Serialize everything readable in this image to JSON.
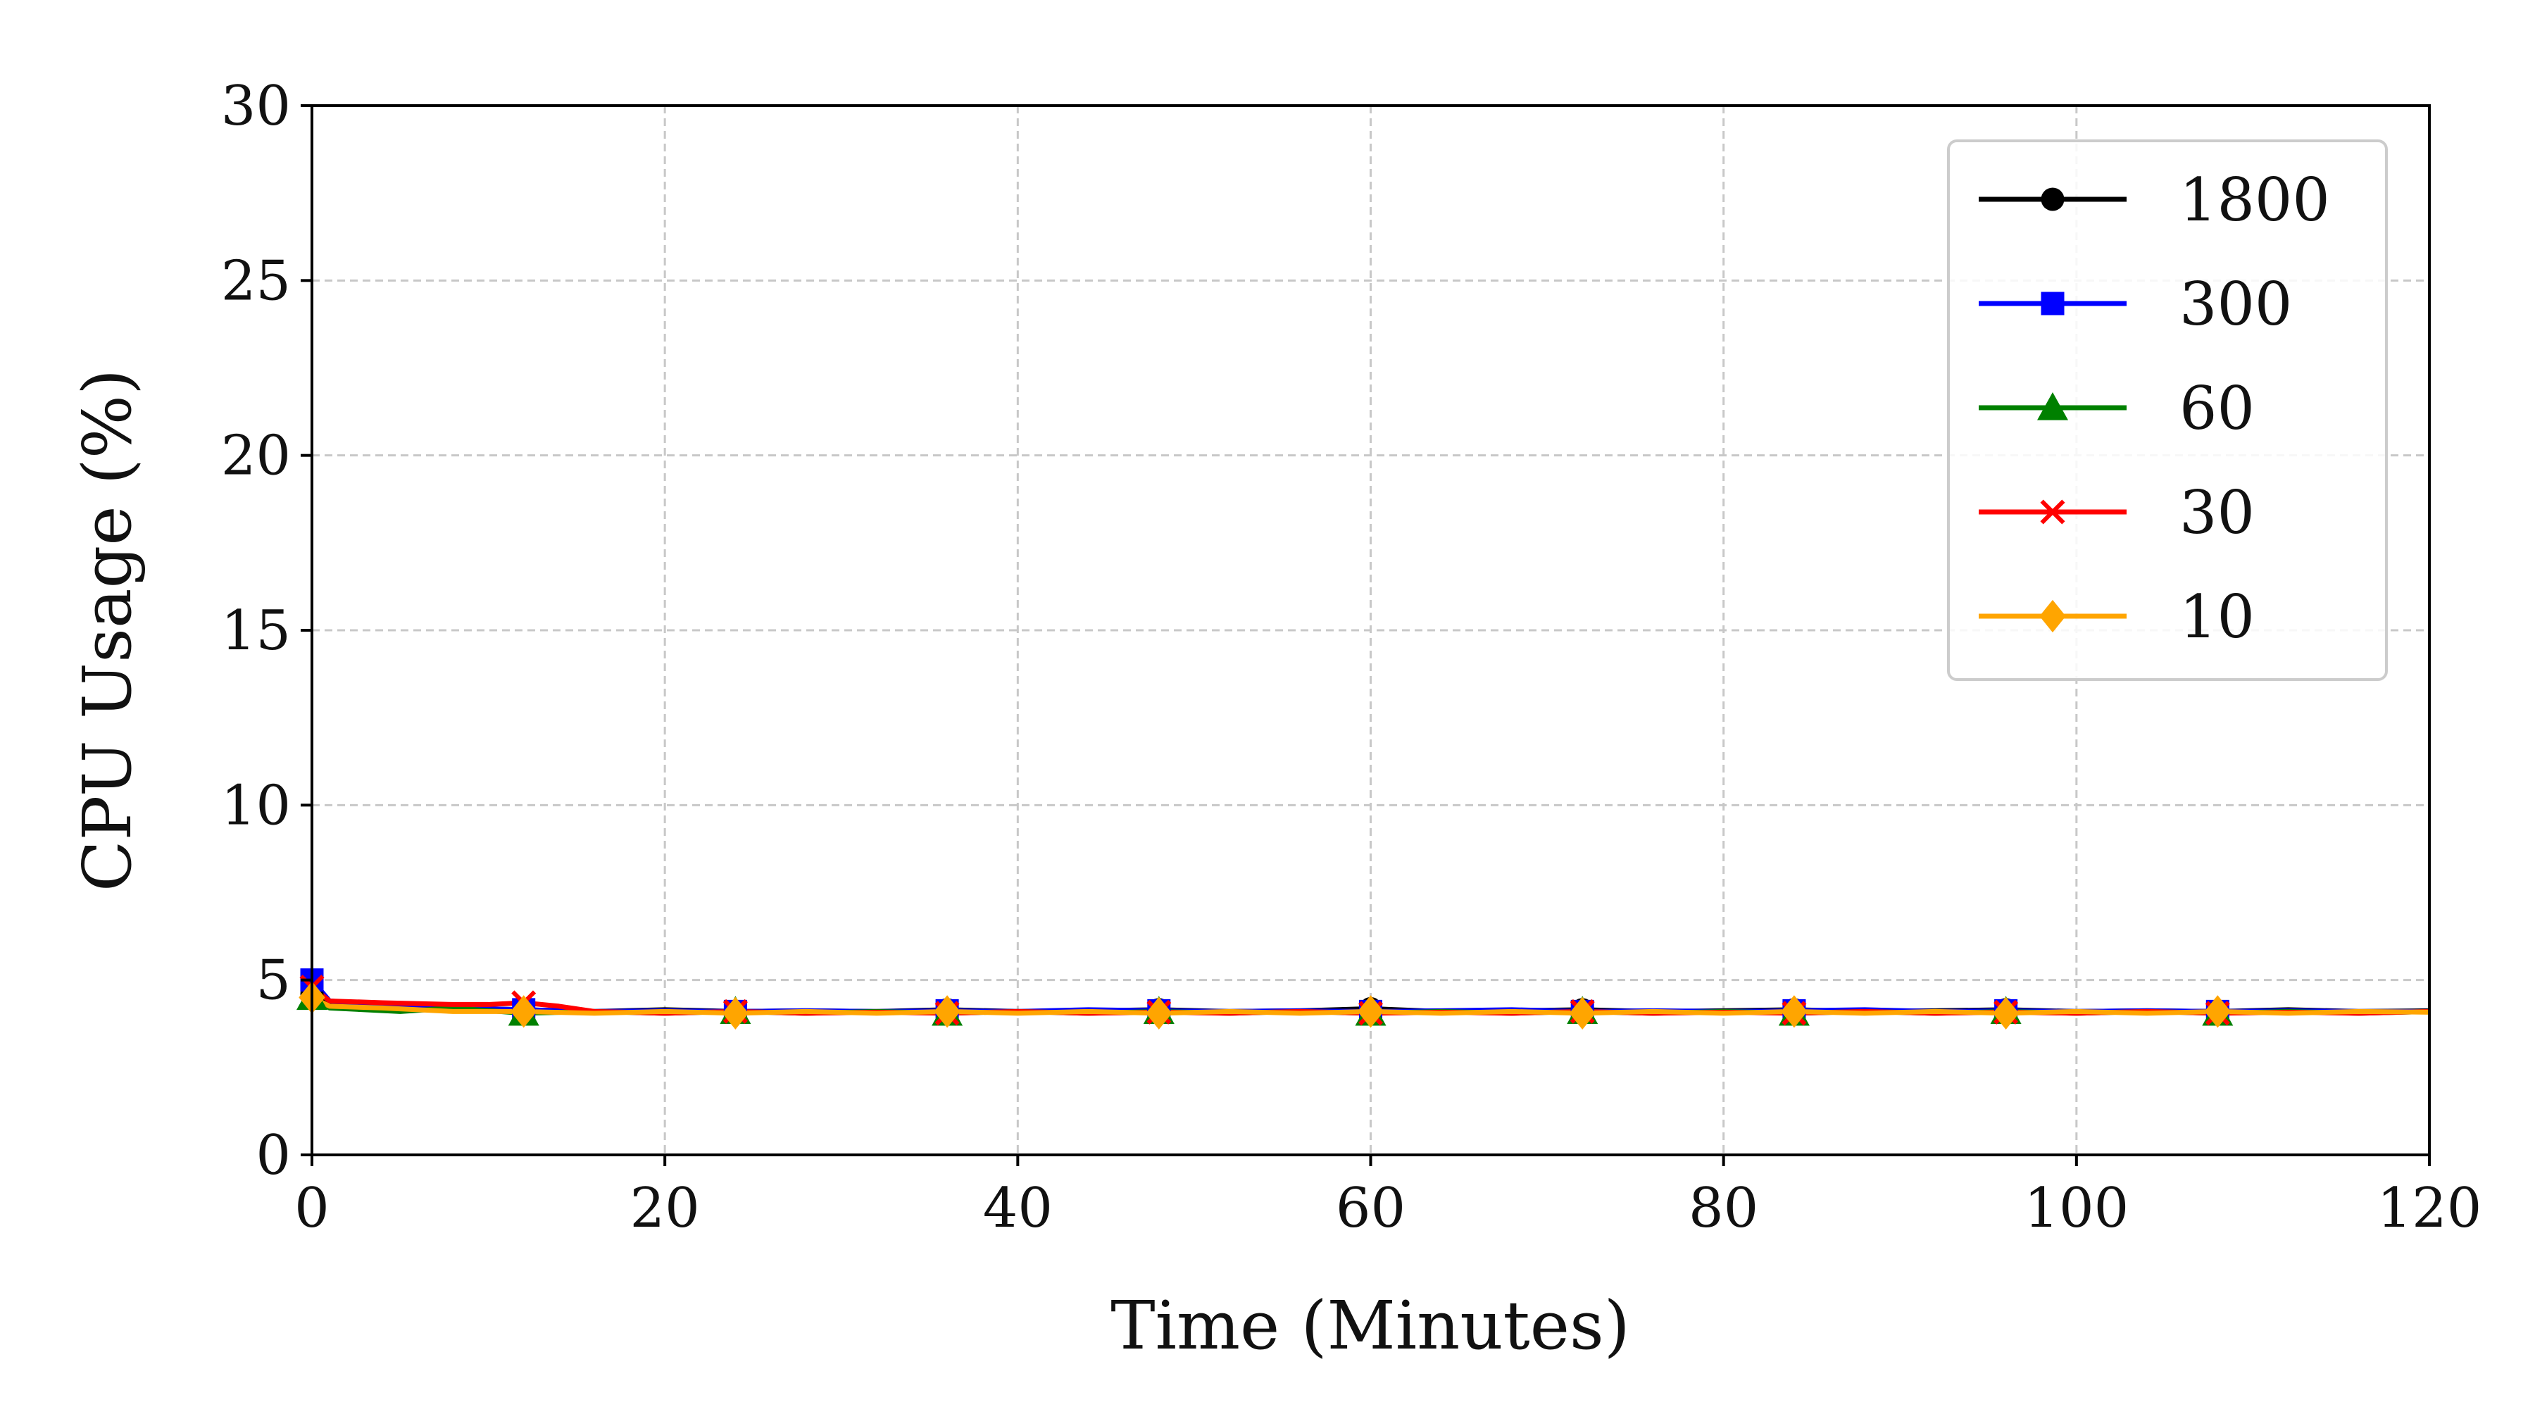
{
  "chart_data": {
    "type": "line",
    "title": "",
    "xlabel": "Time (Minutes)",
    "ylabel": "CPU Usage (%)",
    "xlim": [
      0,
      120
    ],
    "ylim": [
      0,
      30
    ],
    "x_ticks": [
      0,
      20,
      40,
      60,
      80,
      100,
      120
    ],
    "y_ticks": [
      0,
      5,
      10,
      15,
      20,
      25,
      30
    ],
    "grid": true,
    "legend_position": "top-right",
    "marker_x": [
      0,
      12,
      24,
      36,
      48,
      60,
      72,
      84,
      96,
      108
    ],
    "series": [
      {
        "name": "1800",
        "color": "#000000",
        "marker": "circle",
        "x": [
          0,
          1,
          4,
          8,
          12,
          16,
          20,
          24,
          28,
          32,
          36,
          40,
          44,
          48,
          52,
          56,
          60,
          64,
          68,
          72,
          76,
          80,
          84,
          88,
          92,
          96,
          100,
          104,
          108,
          112,
          116,
          120
        ],
        "y": [
          4.6,
          4.3,
          4.25,
          4.2,
          4.15,
          4.1,
          4.15,
          4.1,
          4.12,
          4.1,
          4.15,
          4.1,
          4.12,
          4.15,
          4.1,
          4.12,
          4.18,
          4.1,
          4.12,
          4.15,
          4.1,
          4.12,
          4.15,
          4.1,
          4.12,
          4.15,
          4.1,
          4.12,
          4.1,
          4.15,
          4.1,
          4.12
        ]
      },
      {
        "name": "300",
        "color": "#0000ff",
        "marker": "square",
        "x": [
          0,
          1,
          4,
          8,
          12,
          16,
          20,
          24,
          28,
          32,
          36,
          40,
          44,
          48,
          52,
          56,
          60,
          64,
          68,
          72,
          76,
          80,
          84,
          88,
          92,
          96,
          100,
          104,
          108,
          112,
          116,
          120
        ],
        "y": [
          5.0,
          4.4,
          4.3,
          4.2,
          4.15,
          4.1,
          4.12,
          4.1,
          4.12,
          4.1,
          4.12,
          4.1,
          4.15,
          4.12,
          4.1,
          4.12,
          4.1,
          4.12,
          4.15,
          4.1,
          4.12,
          4.1,
          4.12,
          4.15,
          4.1,
          4.12,
          4.1,
          4.12,
          4.1,
          4.12,
          4.1,
          4.1
        ]
      },
      {
        "name": "60",
        "color": "#008000",
        "marker": "triangle",
        "x": [
          0,
          1,
          3,
          5,
          8,
          12,
          16,
          20,
          24,
          28,
          32,
          36,
          40,
          44,
          48,
          52,
          56,
          60,
          64,
          68,
          72,
          76,
          80,
          84,
          88,
          92,
          96,
          100,
          104,
          108,
          112,
          116,
          120
        ],
        "y": [
          4.5,
          4.2,
          4.15,
          4.1,
          4.2,
          4.05,
          4.1,
          4.05,
          4.1,
          4.05,
          4.1,
          4.05,
          4.1,
          4.05,
          4.1,
          4.05,
          4.1,
          4.05,
          4.1,
          4.05,
          4.1,
          4.05,
          4.1,
          4.05,
          4.1,
          4.05,
          4.1,
          4.05,
          4.1,
          4.05,
          4.1,
          4.05,
          4.1
        ]
      },
      {
        "name": "30",
        "color": "#ff0000",
        "marker": "x",
        "x": [
          0,
          1,
          4,
          8,
          10,
          12,
          14,
          16,
          20,
          24,
          28,
          32,
          36,
          40,
          44,
          48,
          52,
          56,
          60,
          64,
          68,
          72,
          76,
          80,
          84,
          88,
          92,
          96,
          100,
          104,
          108,
          112,
          116,
          120
        ],
        "y": [
          4.8,
          4.4,
          4.35,
          4.3,
          4.3,
          4.35,
          4.25,
          4.1,
          4.05,
          4.1,
          4.05,
          4.08,
          4.05,
          4.1,
          4.05,
          4.08,
          4.05,
          4.1,
          4.05,
          4.08,
          4.05,
          4.1,
          4.05,
          4.08,
          4.05,
          4.1,
          4.05,
          4.08,
          4.05,
          4.1,
          4.05,
          4.08,
          4.05,
          4.1
        ]
      },
      {
        "name": "10",
        "color": "#ffa500",
        "marker": "diamond",
        "x": [
          0,
          1,
          4,
          8,
          12,
          16,
          20,
          24,
          28,
          32,
          36,
          40,
          44,
          48,
          52,
          56,
          60,
          64,
          68,
          72,
          76,
          80,
          84,
          88,
          92,
          96,
          100,
          104,
          108,
          112,
          116,
          120
        ],
        "y": [
          4.5,
          4.25,
          4.2,
          4.1,
          4.1,
          4.05,
          4.1,
          4.05,
          4.1,
          4.05,
          4.1,
          4.05,
          4.1,
          4.05,
          4.1,
          4.05,
          4.1,
          4.05,
          4.1,
          4.05,
          4.1,
          4.05,
          4.1,
          4.05,
          4.1,
          4.05,
          4.1,
          4.05,
          4.1,
          4.05,
          4.1,
          4.08
        ]
      }
    ]
  }
}
